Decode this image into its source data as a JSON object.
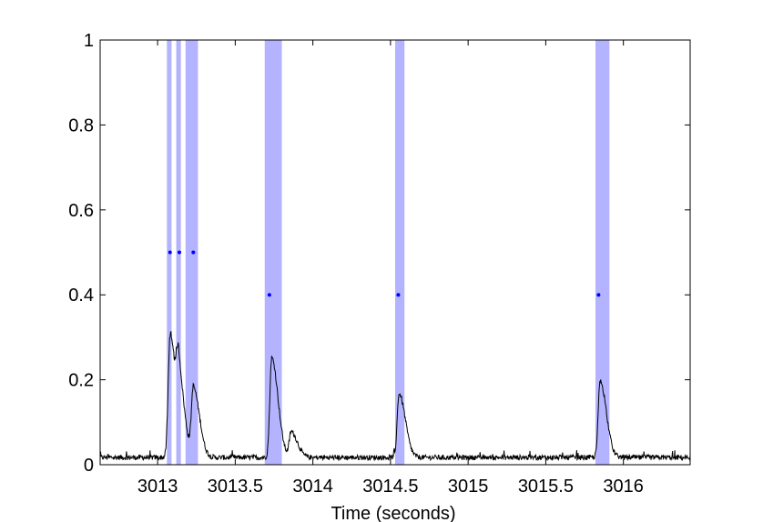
{
  "chart_data": {
    "type": "line",
    "title": "",
    "xlabel": "Time (seconds)",
    "ylabel": "",
    "xlim": [
      3012.63,
      3016.43
    ],
    "ylim": [
      0,
      1
    ],
    "x_ticks": [
      3013,
      3013.5,
      3014,
      3014.5,
      3015,
      3015.5,
      3016
    ],
    "x_tick_labels": [
      "3013",
      "3013.5",
      "3014",
      "3014.5",
      "3015",
      "3015.5",
      "3016"
    ],
    "y_ticks": [
      0,
      0.2,
      0.4,
      0.6,
      0.8,
      1
    ],
    "y_tick_labels": [
      "0",
      "0.2",
      "0.4",
      "0.6",
      "0.8",
      "1"
    ],
    "grid": false,
    "shaded_intervals": [
      {
        "start": 3013.06,
        "end": 3013.09
      },
      {
        "start": 3013.12,
        "end": 3013.15
      },
      {
        "start": 3013.18,
        "end": 3013.26
      },
      {
        "start": 3013.69,
        "end": 3013.8
      },
      {
        "start": 3014.53,
        "end": 3014.59
      },
      {
        "start": 3015.82,
        "end": 3015.91
      }
    ],
    "markers": {
      "x": [
        3013.08,
        3013.14,
        3013.23,
        3013.72,
        3014.55,
        3015.84
      ],
      "y": [
        0.5,
        0.5,
        0.5,
        0.4,
        0.4,
        0.4
      ]
    },
    "signal": {
      "baseline": 0.015,
      "peaks": [
        {
          "x": 3013.08,
          "height": 0.3
        },
        {
          "x": 3013.135,
          "height": 0.165
        },
        {
          "x": 3013.23,
          "height": 0.175
        },
        {
          "x": 3013.735,
          "height": 0.25
        },
        {
          "x": 3013.86,
          "height": 0.075
        },
        {
          "x": 3014.555,
          "height": 0.165
        },
        {
          "x": 3015.85,
          "height": 0.195
        }
      ]
    },
    "colors": {
      "shade": "#b3b3ff",
      "marker": "#0000ff",
      "line": "#000000",
      "axes": "#000000"
    }
  }
}
